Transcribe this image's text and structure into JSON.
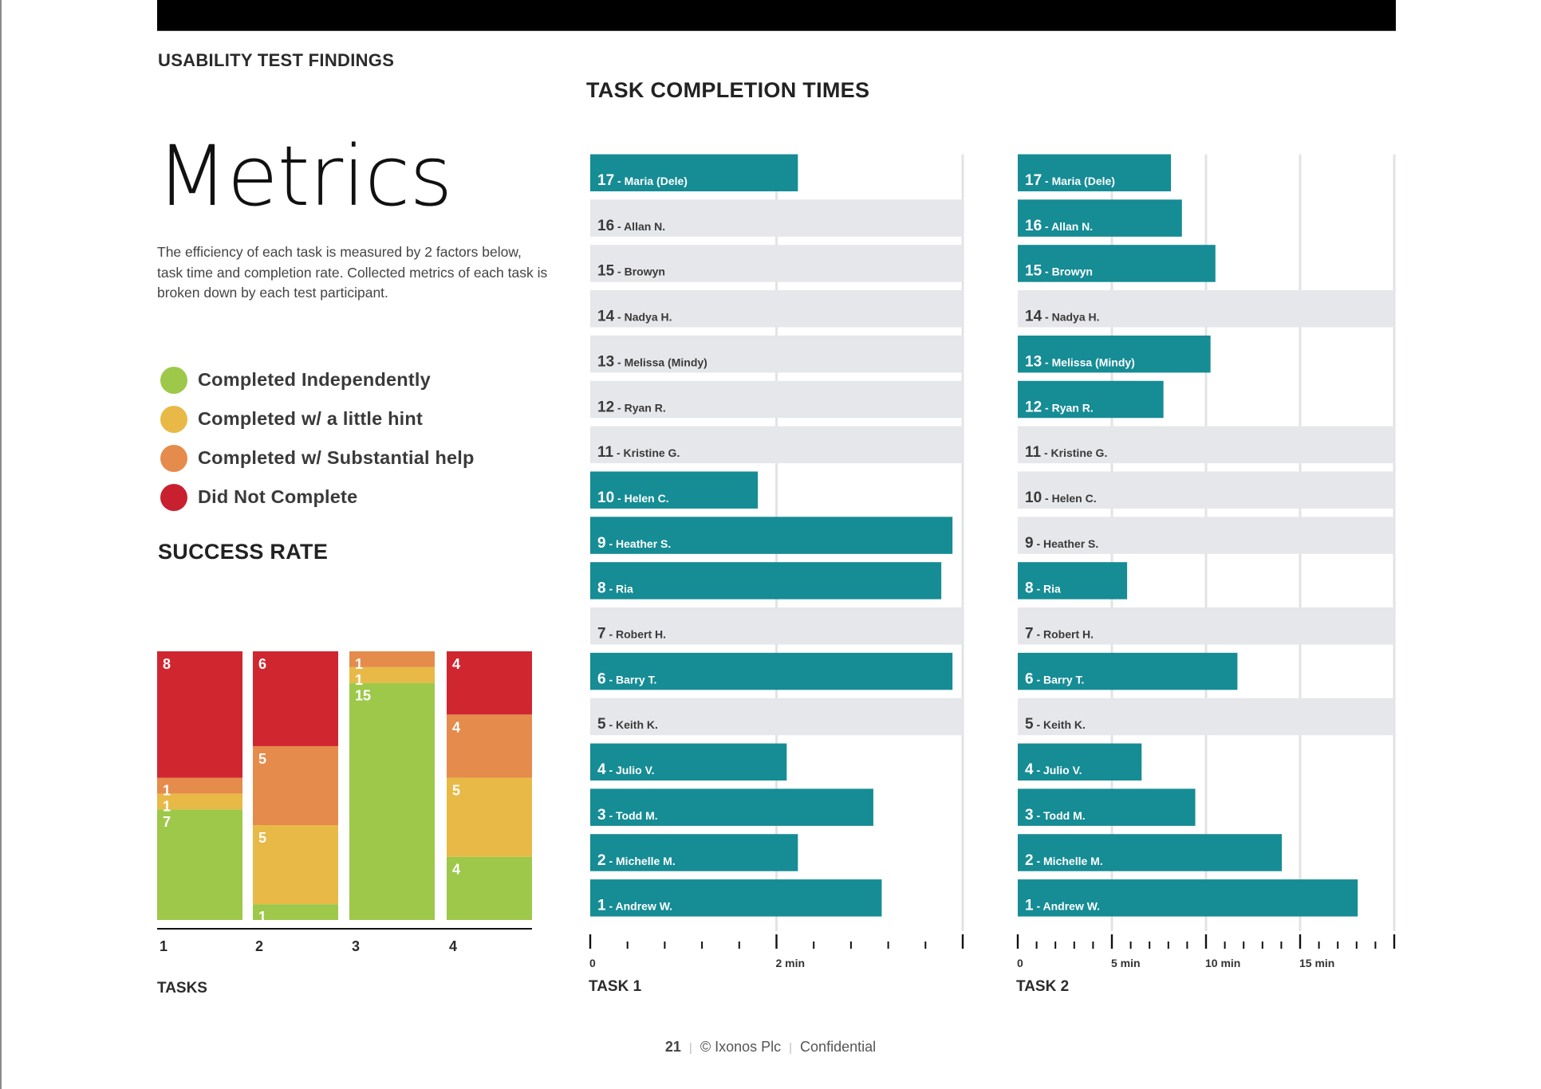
{
  "header": {
    "section_label": "USABILITY TEST FINDINGS",
    "page_title": "Metrics",
    "intro_text": "The efficiency of each task is measured by 2 factors below, task time and completion rate. Collected metrics of each task is broken down by each test participant."
  },
  "legend": [
    {
      "label": "Completed Independently",
      "color": "#9dc84a"
    },
    {
      "label": "Completed w/ a little hint",
      "color": "#e8b946"
    },
    {
      "label": "Completed w/ Substantial help",
      "color": "#e58b4b"
    },
    {
      "label": "Did Not Complete",
      "color": "#c8202f"
    }
  ],
  "colors": {
    "independent": "#9dc84a",
    "hint": "#e8b946",
    "help": "#e58b4b",
    "not_complete": "#d02630",
    "bar_teal": "#168c95",
    "row_grey": "#e6e7ea",
    "grid": "#e2e3e6"
  },
  "success_rate": {
    "title": "SUCCESS RATE",
    "xlabel": "TASKS"
  },
  "task_times": {
    "title": "TASK COMPLETION TIMES"
  },
  "footer": {
    "page_number": "21",
    "copyright": "© Ixonos Plc",
    "confidentiality": "Confidential"
  },
  "chart_data": [
    {
      "type": "bar",
      "stacked": true,
      "orientation": "vertical",
      "title": "SUCCESS RATE",
      "xlabel": "TASKS",
      "ylabel": "",
      "categories": [
        "1",
        "2",
        "3",
        "4"
      ],
      "stack_order_bottom_to_top": [
        "Completed Independently",
        "Completed w/ a little hint",
        "Completed w/ Substantial help",
        "Did Not Complete"
      ],
      "series": [
        {
          "name": "Completed Independently",
          "color": "#9dc84a",
          "values": [
            7,
            1,
            15,
            4
          ]
        },
        {
          "name": "Completed w/ a little hint",
          "color": "#e8b946",
          "values": [
            1,
            5,
            1,
            5
          ]
        },
        {
          "name": "Completed w/ Substantial help",
          "color": "#e58b4b",
          "values": [
            1,
            5,
            1,
            4
          ]
        },
        {
          "name": "Did Not Complete",
          "color": "#d02630",
          "values": [
            8,
            6,
            0,
            4
          ]
        }
      ],
      "ylim": [
        0,
        17
      ],
      "grid": false,
      "legend": "top-left (separate)"
    },
    {
      "type": "bar",
      "orientation": "horizontal",
      "title": "TASK 1",
      "xlabel": "TASK 1",
      "unit": "min",
      "xlim": [
        0,
        4
      ],
      "major_ticks": [
        0,
        2,
        4
      ],
      "tick_labels": [
        "0",
        "2 min",
        ""
      ],
      "minor_tick_step": 0.4,
      "grid": true,
      "participants": [
        {
          "id": "17",
          "name": "Maria (Dele)",
          "value": 2.23
        },
        {
          "id": "16",
          "name": "Allan N.",
          "value": null
        },
        {
          "id": "15",
          "name": "Browyn",
          "value": null
        },
        {
          "id": "14",
          "name": "Nadya H.",
          "value": null
        },
        {
          "id": "13",
          "name": "Melissa (Mindy)",
          "value": null
        },
        {
          "id": "12",
          "name": "Ryan R.",
          "value": null
        },
        {
          "id": "11",
          "name": "Kristine G.",
          "value": null
        },
        {
          "id": "10",
          "name": "Helen C.",
          "value": 1.8
        },
        {
          "id": "9",
          "name": "Heather S.",
          "value": 3.89
        },
        {
          "id": "8",
          "name": "Ria",
          "value": 3.77
        },
        {
          "id": "7",
          "name": "Robert H.",
          "value": null
        },
        {
          "id": "6",
          "name": "Barry T.",
          "value": 3.89
        },
        {
          "id": "5",
          "name": "Keith K.",
          "value": null
        },
        {
          "id": "4",
          "name": "Julio V.",
          "value": 2.11
        },
        {
          "id": "3",
          "name": "Todd M.",
          "value": 3.04
        },
        {
          "id": "2",
          "name": "Michelle M.",
          "value": 2.23
        },
        {
          "id": "1",
          "name": "Andrew W.",
          "value": 3.13
        }
      ]
    },
    {
      "type": "bar",
      "orientation": "horizontal",
      "title": "TASK 2",
      "xlabel": "TASK 2",
      "unit": "min",
      "xlim": [
        0,
        20
      ],
      "major_ticks": [
        0,
        5,
        10,
        15,
        20
      ],
      "tick_labels": [
        "0",
        "5 min",
        "10 min",
        "15 min",
        ""
      ],
      "minor_tick_step": 1,
      "grid": true,
      "participants": [
        {
          "id": "17",
          "name": "Maria (Dele)",
          "value": 8.14
        },
        {
          "id": "16",
          "name": "Allan N.",
          "value": 8.72
        },
        {
          "id": "15",
          "name": "Browyn",
          "value": 10.5
        },
        {
          "id": "14",
          "name": "Nadya H.",
          "value": null
        },
        {
          "id": "13",
          "name": "Melissa (Mindy)",
          "value": 10.24
        },
        {
          "id": "12",
          "name": "Ryan R.",
          "value": 7.74
        },
        {
          "id": "11",
          "name": "Kristine G.",
          "value": null
        },
        {
          "id": "10",
          "name": "Helen C.",
          "value": null
        },
        {
          "id": "9",
          "name": "Heather S.",
          "value": null
        },
        {
          "id": "8",
          "name": "Ria",
          "value": 5.81
        },
        {
          "id": "7",
          "name": "Robert H.",
          "value": null
        },
        {
          "id": "6",
          "name": "Barry T.",
          "value": 11.67
        },
        {
          "id": "5",
          "name": "Keith K.",
          "value": null
        },
        {
          "id": "4",
          "name": "Julio V.",
          "value": 6.58
        },
        {
          "id": "3",
          "name": "Todd M.",
          "value": 9.43
        },
        {
          "id": "2",
          "name": "Michelle M.",
          "value": 14.03
        },
        {
          "id": "1",
          "name": "Andrew W.",
          "value": 18.06
        }
      ]
    }
  ]
}
